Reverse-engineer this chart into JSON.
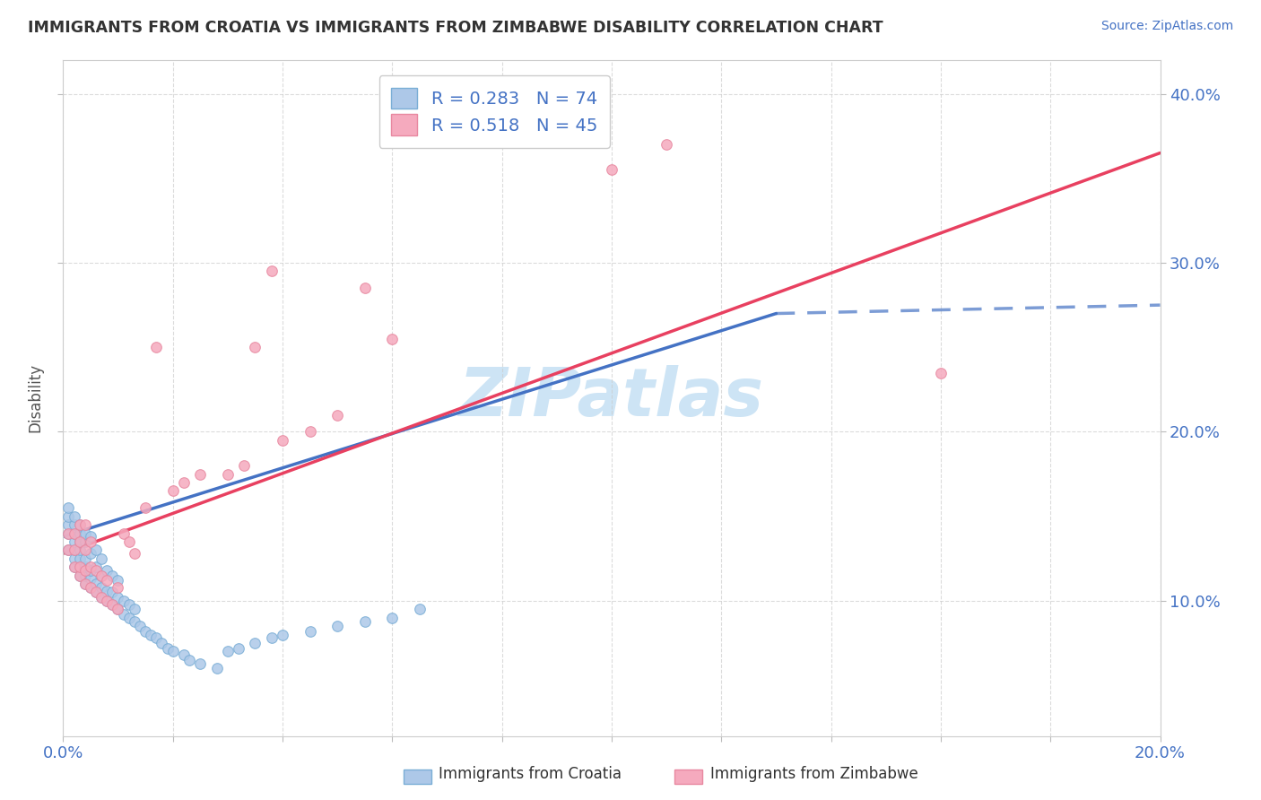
{
  "title": "IMMIGRANTS FROM CROATIA VS IMMIGRANTS FROM ZIMBABWE DISABILITY CORRELATION CHART",
  "source": "Source: ZipAtlas.com",
  "ylabel": "Disability",
  "xlim": [
    0.0,
    0.2
  ],
  "ylim": [
    0.02,
    0.42
  ],
  "yticks": [
    0.1,
    0.2,
    0.3,
    0.4
  ],
  "ytick_labels": [
    "10.0%",
    "20.0%",
    "30.0%",
    "40.0%"
  ],
  "legend_r1": "R = 0.283",
  "legend_n1": "N = 74",
  "legend_r2": "R = 0.518",
  "legend_n2": "N = 45",
  "color_croatia": "#adc8e8",
  "color_zimbabwe": "#f5aabe",
  "color_line_croatia": "#4472c4",
  "color_line_zimbabwe": "#e84060",
  "watermark": "ZIPatlas",
  "watermark_color": "#cde4f5",
  "croatia_x": [
    0.001,
    0.001,
    0.001,
    0.001,
    0.001,
    0.002,
    0.002,
    0.002,
    0.002,
    0.002,
    0.002,
    0.002,
    0.003,
    0.003,
    0.003,
    0.003,
    0.003,
    0.003,
    0.003,
    0.004,
    0.004,
    0.004,
    0.004,
    0.004,
    0.004,
    0.005,
    0.005,
    0.005,
    0.005,
    0.005,
    0.006,
    0.006,
    0.006,
    0.006,
    0.007,
    0.007,
    0.007,
    0.007,
    0.008,
    0.008,
    0.008,
    0.009,
    0.009,
    0.009,
    0.01,
    0.01,
    0.01,
    0.011,
    0.011,
    0.012,
    0.012,
    0.013,
    0.013,
    0.014,
    0.015,
    0.016,
    0.017,
    0.018,
    0.019,
    0.02,
    0.022,
    0.023,
    0.025,
    0.028,
    0.03,
    0.032,
    0.035,
    0.038,
    0.04,
    0.045,
    0.05,
    0.055,
    0.06,
    0.065
  ],
  "croatia_y": [
    0.13,
    0.14,
    0.145,
    0.15,
    0.155,
    0.12,
    0.125,
    0.13,
    0.135,
    0.14,
    0.145,
    0.15,
    0.115,
    0.12,
    0.125,
    0.13,
    0.135,
    0.14,
    0.145,
    0.11,
    0.115,
    0.12,
    0.125,
    0.135,
    0.14,
    0.108,
    0.113,
    0.118,
    0.128,
    0.138,
    0.105,
    0.11,
    0.12,
    0.13,
    0.102,
    0.108,
    0.115,
    0.125,
    0.1,
    0.106,
    0.118,
    0.098,
    0.105,
    0.115,
    0.095,
    0.102,
    0.112,
    0.092,
    0.1,
    0.09,
    0.098,
    0.088,
    0.095,
    0.085,
    0.082,
    0.08,
    0.078,
    0.075,
    0.072,
    0.07,
    0.068,
    0.065,
    0.063,
    0.06,
    0.07,
    0.072,
    0.075,
    0.078,
    0.08,
    0.082,
    0.085,
    0.088,
    0.09,
    0.095
  ],
  "zimbabwe_x": [
    0.001,
    0.001,
    0.002,
    0.002,
    0.002,
    0.003,
    0.003,
    0.003,
    0.003,
    0.004,
    0.004,
    0.004,
    0.004,
    0.005,
    0.005,
    0.005,
    0.006,
    0.006,
    0.007,
    0.007,
    0.008,
    0.008,
    0.009,
    0.01,
    0.01,
    0.011,
    0.012,
    0.013,
    0.015,
    0.017,
    0.02,
    0.022,
    0.025,
    0.03,
    0.033,
    0.035,
    0.038,
    0.04,
    0.045,
    0.05,
    0.055,
    0.06,
    0.1,
    0.11,
    0.16
  ],
  "zimbabwe_y": [
    0.13,
    0.14,
    0.12,
    0.13,
    0.14,
    0.115,
    0.12,
    0.135,
    0.145,
    0.11,
    0.118,
    0.13,
    0.145,
    0.108,
    0.12,
    0.135,
    0.105,
    0.118,
    0.102,
    0.115,
    0.1,
    0.112,
    0.098,
    0.095,
    0.108,
    0.14,
    0.135,
    0.128,
    0.155,
    0.25,
    0.165,
    0.17,
    0.175,
    0.175,
    0.18,
    0.25,
    0.295,
    0.195,
    0.2,
    0.21,
    0.285,
    0.255,
    0.355,
    0.37,
    0.235
  ],
  "line_croatia_x0": 0.0,
  "line_croatia_y0": 0.138,
  "line_croatia_x1": 0.13,
  "line_croatia_y1": 0.27,
  "line_croatia_dash_x1": 0.2,
  "line_croatia_dash_y1": 0.275,
  "line_zimbabwe_x0": 0.0,
  "line_zimbabwe_y0": 0.128,
  "line_zimbabwe_x1": 0.2,
  "line_zimbabwe_y1": 0.365
}
